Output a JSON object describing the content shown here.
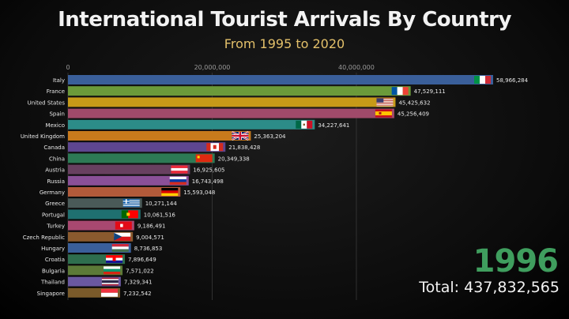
{
  "title": "International Tourist Arrivals By Country",
  "subtitle": "From 1995 to 2020",
  "year": "1996",
  "total": "Total: 437,832,565",
  "chart_data": {
    "type": "bar",
    "orientation": "horizontal",
    "title": "International Tourist Arrivals By Country",
    "subtitle": "From 1995 to 2020",
    "xlim": [
      0,
      60000000
    ],
    "xticks": [
      0,
      20000000,
      40000000
    ],
    "xtick_labels": [
      "0",
      "20,000,000",
      "40,000,000"
    ],
    "grid": true,
    "categories": [
      "Italy",
      "France",
      "United States",
      "Spain",
      "Mexico",
      "United Kingdom",
      "Canada",
      "China",
      "Austria",
      "Russia",
      "Germany",
      "Greece",
      "Portugal",
      "Turkey",
      "Czech Republic",
      "Hungary",
      "Croatia",
      "Bulgaria",
      "Thailand",
      "Singapore"
    ],
    "values": [
      58966284,
      47529111,
      45425632,
      45256409,
      34227641,
      25363204,
      21838428,
      20349338,
      16925605,
      16743498,
      15593048,
      10271144,
      10061516,
      9186491,
      9004571,
      8736853,
      7896649,
      7571022,
      7329341,
      7232542
    ],
    "value_labels": [
      "58,966,284",
      "47,529,111",
      "45,425,632",
      "45,256,409",
      "34,227,641",
      "25,363,204",
      "21,838,428",
      "20,349,338",
      "16,925,605",
      "16,743,498",
      "15,593,048",
      "10,271,144",
      "10,061,516",
      "9,186,491",
      "9,004,571",
      "8,736,853",
      "7,896,649",
      "7,571,022",
      "7,329,341",
      "7,232,542"
    ],
    "colors": [
      "#3a5f9a",
      "#6b9a3a",
      "#c79a18",
      "#a04a6a",
      "#2c8c88",
      "#c87a1c",
      "#5e4690",
      "#2d7a55",
      "#684060",
      "#8a5098",
      "#b25a3a",
      "#4a5a58",
      "#1f7070",
      "#a84870",
      "#8a5a2e",
      "#3a5f9a",
      "#2e6e4e",
      "#5c7a38",
      "#6a58a0",
      "#7a5a2a"
    ],
    "flags": [
      "italy-flag",
      "france-flag",
      "usa-flag",
      "spain-flag",
      "mexico-flag",
      "uk-flag",
      "canada-flag",
      "china-flag",
      "austria-flag",
      "russia-flag",
      "germany-flag",
      "greece-flag",
      "portugal-flag",
      "turkey-flag",
      "czech-flag",
      "hungary-flag",
      "croatia-flag",
      "bulgaria-flag",
      "thailand-flag",
      "singapore-flag"
    ]
  }
}
